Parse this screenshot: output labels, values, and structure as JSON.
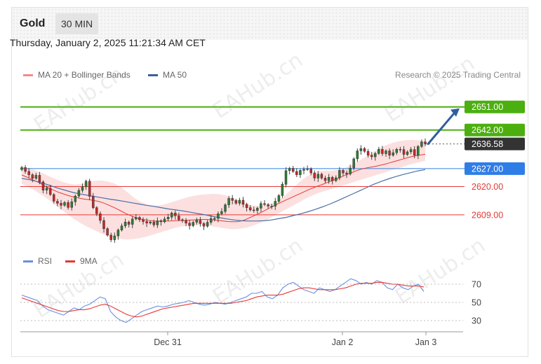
{
  "header": {
    "symbol": "Gold",
    "timeframe": "30 MIN"
  },
  "datetime": "Thursday, January 2, 2025 11:21:34 AM CET",
  "legend": {
    "ma20_label": "MA 20 + Bollinger Bands",
    "ma50_label": "MA 50"
  },
  "credit": "Research © 2025 Trading Central",
  "rsi_legend": {
    "rsi_label": "RSI",
    "ma_label": "9MA"
  },
  "watermark": "EAHub.cn",
  "colors": {
    "up": "#2e7d32",
    "down": "#c62828",
    "ma20": "#e53935",
    "ma50": "#4a6fa5",
    "bands": "#fbd5d5",
    "resistance": "#4caf10",
    "support": "#e53935",
    "pivot": "#4a8fe6",
    "current": "#333333",
    "rsi": "#6b8fe0"
  },
  "chart_data": [
    {
      "type": "candlestick",
      "title": "Gold",
      "timeframe": "30 MIN",
      "x_ticks": [
        "Dec 31",
        "Jan 2",
        "Jan 3"
      ],
      "ylim": [
        2594,
        2655
      ],
      "price_levels": [
        {
          "value": 2651.0,
          "label": "2651.00",
          "kind": "resistance"
        },
        {
          "value": 2642.0,
          "label": "2642.00",
          "kind": "resistance"
        },
        {
          "value": 2636.58,
          "label": "2636.58",
          "kind": "current"
        },
        {
          "value": 2627.0,
          "label": "2627.00",
          "kind": "pivot"
        },
        {
          "value": 2620.0,
          "label": "2620.00",
          "kind": "support"
        },
        {
          "value": 2609.0,
          "label": "2609.00",
          "kind": "support"
        }
      ],
      "close": [
        2627.4,
        2625.9,
        2624.6,
        2623.2,
        2624.4,
        2621.8,
        2618.6,
        2619.4,
        2616.9,
        2614.3,
        2613.5,
        2612.7,
        2613.8,
        2611.9,
        2614.1,
        2616.3,
        2618.5,
        2619.9,
        2622.1,
        2616.2,
        2611.8,
        2609.4,
        2606.8,
        2603.6,
        2601.1,
        2599.3,
        2600.8,
        2603.1,
        2604.7,
        2606.2,
        2605.3,
        2607.4,
        2608.0,
        2607.1,
        2606.4,
        2605.8,
        2606.2,
        2605.1,
        2606.7,
        2606.3,
        2607.4,
        2608.1,
        2609.7,
        2608.6,
        2607.1,
        2606.8,
        2605.8,
        2604.8,
        2606.1,
        2606.9,
        2605.6,
        2604.6,
        2606.1,
        2607.6,
        2607.6,
        2609.4,
        2610.3,
        2612.9,
        2615.4,
        2614.6,
        2613.5,
        2614.7,
        2613.1,
        2611.8,
        2610.9,
        2610.7,
        2611.6,
        2613.4,
        2613.0,
        2612.4,
        2612.4,
        2614.3,
        2616.5,
        2620.9,
        2626.2,
        2627.1,
        2625.9,
        2624.6,
        2626.3,
        2626.7,
        2626.9,
        2625.3,
        2623.3,
        2624.8,
        2623.3,
        2622.3,
        2623.6,
        2622.3,
        2623.4,
        2626.3,
        2625.3,
        2624.9,
        2627.2,
        2630.8,
        2633.9,
        2634.8,
        2633.7,
        2632.2,
        2631.6,
        2632.9,
        2634.5,
        2632.8,
        2633.9,
        2632.2,
        2633.2,
        2634.5,
        2634.4,
        2632.5,
        2633.5,
        2634.4,
        2632.2,
        2635.6,
        2637.4,
        2636.6
      ],
      "ma20": [
        2624.5,
        2623.8,
        2623.0,
        2622.2,
        2621.4,
        2620.4,
        2619.4,
        2618.7,
        2617.9,
        2617.3,
        2616.7,
        2616.2,
        2615.8,
        2615.4,
        2615.1,
        2614.9,
        2614.6,
        2614.3,
        2613.8,
        2613.1,
        2612.3,
        2611.5,
        2610.6,
        2609.7,
        2608.9,
        2608.2,
        2607.6,
        2607.2,
        2606.9,
        2606.7,
        2606.5,
        2606.5,
        2606.6,
        2606.6,
        2606.7,
        2606.8,
        2606.8,
        2606.9,
        2607.0,
        2607.1,
        2607.2,
        2607.2,
        2607.1,
        2607.0,
        2606.8,
        2606.6,
        2606.4,
        2606.3,
        2606.3,
        2606.6,
        2607.2,
        2608.0,
        2608.8,
        2609.6,
        2610.5,
        2611.4,
        2612.3,
        2613.2,
        2614.0,
        2614.8,
        2615.6,
        2616.4,
        2617.2,
        2618.0,
        2618.8,
        2619.5,
        2620.2,
        2620.8,
        2621.5,
        2622.1,
        2622.8,
        2623.5,
        2624.3,
        2625.0,
        2625.7,
        2626.4,
        2626.9,
        2627.3,
        2627.6,
        2627.9,
        2628.3,
        2628.7,
        2629.2,
        2629.7,
        2630.2,
        2630.7,
        2631.2,
        2631.7,
        2632.0,
        2632.3,
        2632.6
      ],
      "ma50": [
        2623.2,
        2622.7,
        2622.0,
        2621.2,
        2620.3,
        2619.3,
        2618.5,
        2617.7,
        2617.1,
        2616.6,
        2616.1,
        2615.6,
        2615.1,
        2614.7,
        2614.2,
        2613.7,
        2613.2,
        2612.7,
        2612.3,
        2611.8,
        2611.3,
        2610.9,
        2610.5,
        2610.0,
        2609.5,
        2609.0,
        2608.4,
        2607.9,
        2607.4,
        2607.0,
        2606.7,
        2606.6,
        2606.6,
        2606.7,
        2607.0,
        2607.5,
        2608.0,
        2608.7,
        2609.4,
        2610.2,
        2611.1,
        2612.1,
        2613.2,
        2614.4,
        2615.7,
        2617.0,
        2618.3,
        2619.6,
        2620.9,
        2622.0,
        2623.0,
        2623.9,
        2624.7,
        2625.4,
        2626.1,
        2626.6
      ],
      "ma50_start_index": 0,
      "band_upper": [
        2628.0,
        2627.2,
        2626.4,
        2625.4,
        2624.2,
        2623.0,
        2622.0,
        2621.2,
        2620.8,
        2621.0,
        2621.6,
        2622.2,
        2622.4,
        2622.0,
        2621.2,
        2619.8,
        2617.8,
        2615.6,
        2614.0,
        2613.0,
        2612.6,
        2612.8,
        2613.4,
        2614.2,
        2615.0,
        2615.8,
        2616.4,
        2616.8,
        2617.0,
        2617.2,
        2617.0,
        2616.4,
        2615.4,
        2614.2,
        2613.2,
        2612.6,
        2612.4,
        2612.8,
        2613.6,
        2615.0,
        2617.0,
        2619.4,
        2621.8,
        2623.8,
        2625.2,
        2626.0,
        2626.2,
        2626.2,
        2626.6,
        2627.4,
        2628.6,
        2630.0,
        2631.6,
        2633.2,
        2634.8,
        2636.0,
        2637.0,
        2637.6,
        2638.0,
        2638.2,
        2638.0,
        2637.6
      ],
      "band_lower": [
        2621.0,
        2619.8,
        2618.4,
        2616.8,
        2615.0,
        2613.0,
        2611.0,
        2609.0,
        2607.2,
        2605.6,
        2604.2,
        2603.0,
        2601.8,
        2600.8,
        2600.0,
        2599.6,
        2599.4,
        2599.6,
        2600.0,
        2600.6,
        2601.4,
        2602.2,
        2603.0,
        2603.8,
        2604.4,
        2604.8,
        2605.0,
        2605.0,
        2604.8,
        2604.4,
        2604.0,
        2603.6,
        2603.4,
        2603.6,
        2604.0,
        2604.8,
        2605.8,
        2607.0,
        2608.4,
        2609.8,
        2611.2,
        2612.6,
        2614.0,
        2615.4,
        2616.6,
        2617.6,
        2618.4,
        2619.2,
        2620.0,
        2620.8,
        2621.6,
        2622.4,
        2623.2,
        2624.0,
        2624.8,
        2625.6,
        2626.4,
        2627.2,
        2628.0,
        2628.8,
        2629.4,
        2630.0
      ],
      "forecast_arrow": {
        "from": 2636.58,
        "to": 2651.0
      }
    },
    {
      "type": "line",
      "title": "RSI",
      "y_ticks": [
        30,
        50,
        70
      ],
      "ylim": [
        20,
        80
      ],
      "series": [
        {
          "name": "RSI",
          "values": [
            58,
            56,
            54,
            52,
            46,
            42,
            40,
            38,
            36,
            40,
            44,
            42,
            46,
            48,
            52,
            56,
            54,
            40,
            34,
            30,
            28,
            32,
            36,
            40,
            42,
            44,
            46,
            45,
            46,
            48,
            49,
            50,
            52,
            50,
            48,
            47,
            48,
            50,
            49,
            48,
            50,
            52,
            54,
            56,
            60,
            60,
            62,
            56,
            54,
            58,
            66,
            70,
            72,
            68,
            64,
            62,
            60,
            66,
            64,
            62,
            64,
            68,
            72,
            76,
            74,
            70,
            72,
            70,
            74,
            72,
            66,
            64,
            70,
            66,
            64,
            68,
            70,
            62
          ]
        },
        {
          "name": "9MA",
          "values": [
            55,
            53,
            51,
            49,
            47,
            45,
            43,
            41,
            40,
            40,
            41,
            42,
            42,
            43,
            45,
            47,
            48,
            46,
            43,
            40,
            37,
            35,
            34,
            35,
            37,
            39,
            41,
            43,
            44,
            45,
            46,
            47,
            48,
            49,
            49,
            49,
            49,
            49,
            49,
            49,
            49,
            50,
            51,
            52,
            54,
            56,
            57,
            58,
            58,
            58,
            59,
            61,
            63,
            65,
            66,
            66,
            65,
            64,
            64,
            64,
            64,
            65,
            66,
            68,
            70,
            71,
            71,
            71,
            72,
            72,
            71,
            70,
            70,
            69,
            68,
            68,
            68,
            67
          ]
        }
      ]
    }
  ]
}
